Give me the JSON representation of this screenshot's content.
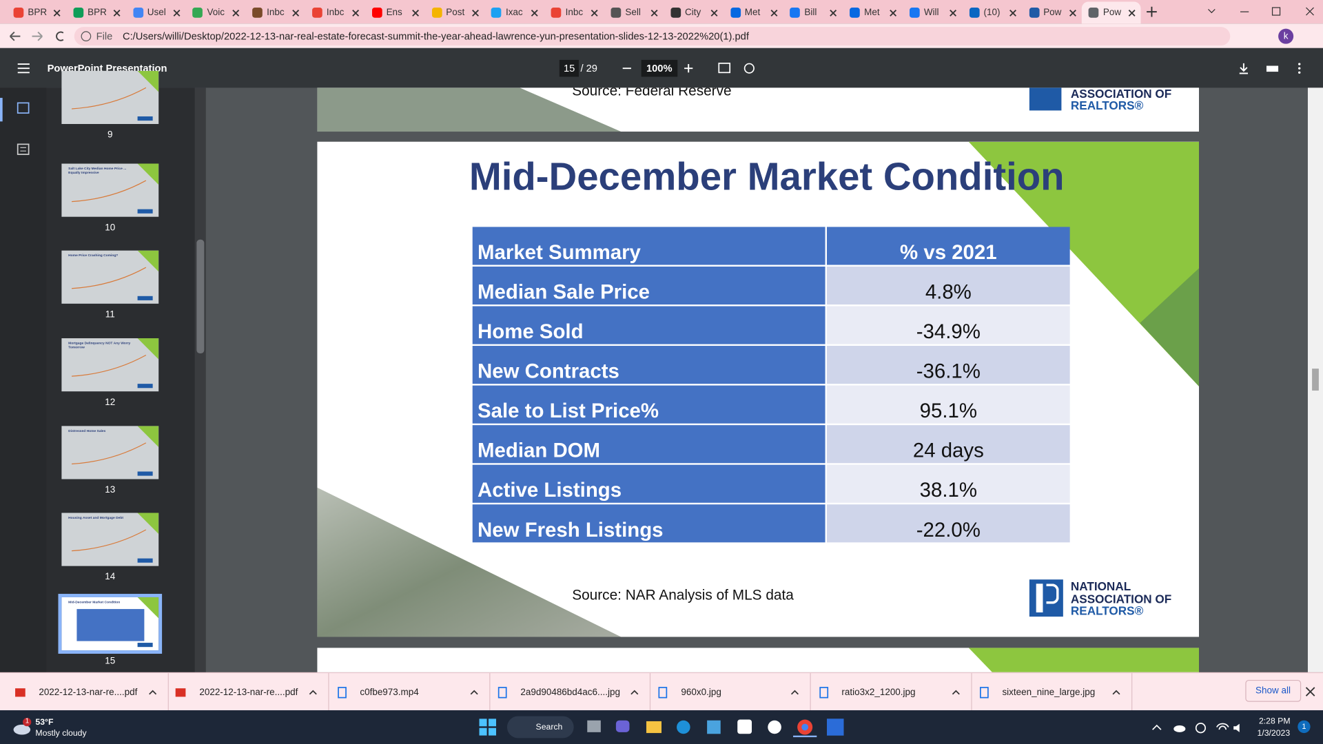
{
  "browser": {
    "tabs": [
      {
        "label": "BPR",
        "icon_color": "#ea4335"
      },
      {
        "label": "BPR",
        "icon_color": "#0f9d58"
      },
      {
        "label": "Usel",
        "icon_color": "#4285f4"
      },
      {
        "label": "Voic",
        "icon_color": "#34a853"
      },
      {
        "label": "Inbc",
        "icon_color": "#7a4b2a"
      },
      {
        "label": "Inbc",
        "icon_color": "#ea4335"
      },
      {
        "label": "Ens",
        "icon_color": "#ff0000"
      },
      {
        "label": "Post",
        "icon_color": "#f4b400"
      },
      {
        "label": "Ixac",
        "icon_color": "#1da1f2"
      },
      {
        "label": "Inbc",
        "icon_color": "#ea4335"
      },
      {
        "label": "Sell",
        "icon_color": "#555555"
      },
      {
        "label": "City",
        "icon_color": "#333333"
      },
      {
        "label": "Met",
        "icon_color": "#0668e1"
      },
      {
        "label": "Bill",
        "icon_color": "#1877f2"
      },
      {
        "label": "Met",
        "icon_color": "#0668e1"
      },
      {
        "label": "Will",
        "icon_color": "#1877f2"
      },
      {
        "label": "(10)",
        "icon_color": "#0a66c2"
      },
      {
        "label": "Pow",
        "icon_color": "#1f5aa6"
      },
      {
        "label": "Pow",
        "icon_color": "#5f6368"
      }
    ],
    "active_tab": 18,
    "url_scheme": "File",
    "url": "C:/Users/willi/Desktop/2022-12-13-nar-real-estate-forecast-summit-the-year-ahead-lawrence-yun-presentation-slides-12-13-2022%20(1).pdf",
    "profile": "k"
  },
  "viewer": {
    "title": "PowerPoint Presentation",
    "page": "15",
    "page_total": "/ 29",
    "zoom": "100%",
    "thumbnails": [
      {
        "number": "9",
        "caption": ""
      },
      {
        "number": "10",
        "caption": "Salt Lake City Median Home Price ... Equally Impressive"
      },
      {
        "number": "11",
        "caption": "Home Price Crashing Coming?"
      },
      {
        "number": "12",
        "caption": "Mortgage Delinquency NOT Any Worry Tomorrow"
      },
      {
        "number": "13",
        "caption": "Distressed Home Sales"
      },
      {
        "number": "14",
        "caption": "Housing Asset and Mortgage Debt"
      },
      {
        "number": "15",
        "caption": "Mid-December Market Condition"
      }
    ],
    "active_thumbnail": 6
  },
  "previous_slide": {
    "source": "Source: Federal Reserve",
    "logo": [
      "ASSOCIATION OF",
      "REALTORS®"
    ]
  },
  "slide": {
    "title": "Mid-December Market Condition",
    "table": {
      "header": [
        "Market Summary",
        "% vs 2021"
      ],
      "rows": [
        [
          "Median Sale Price",
          "4.8%"
        ],
        [
          "Home Sold",
          "-34.9%"
        ],
        [
          "New Contracts",
          "-36.1%"
        ],
        [
          "Sale to List Price%",
          "95.1%"
        ],
        [
          "Median DOM",
          "24 days"
        ],
        [
          "Active Listings",
          "38.1%"
        ],
        [
          "New Fresh Listings",
          "-22.0%"
        ]
      ]
    },
    "source": "Source: NAR Analysis of MLS data",
    "logo": [
      "NATIONAL",
      "ASSOCIATION OF",
      "REALTORS®"
    ]
  },
  "downloads": {
    "items": [
      {
        "name": "2022-12-13-nar-re....pdf",
        "kind": "pdf"
      },
      {
        "name": "2022-12-13-nar-re....pdf",
        "kind": "pdf"
      },
      {
        "name": "c0fbe973.mp4",
        "kind": "file"
      },
      {
        "name": "2a9d90486bd4ac6....jpg",
        "kind": "file"
      },
      {
        "name": "960x0.jpg",
        "kind": "file"
      },
      {
        "name": "ratio3x2_1200.jpg",
        "kind": "file"
      },
      {
        "name": "sixteen_nine_large.jpg",
        "kind": "file"
      }
    ],
    "show_all": "Show all"
  },
  "taskbar": {
    "weather_badge": "1",
    "temperature": "53°F",
    "condition": "Mostly cloudy",
    "search": "Search",
    "time": "2:28 PM",
    "date": "1/3/2023",
    "notifications": "1"
  }
}
